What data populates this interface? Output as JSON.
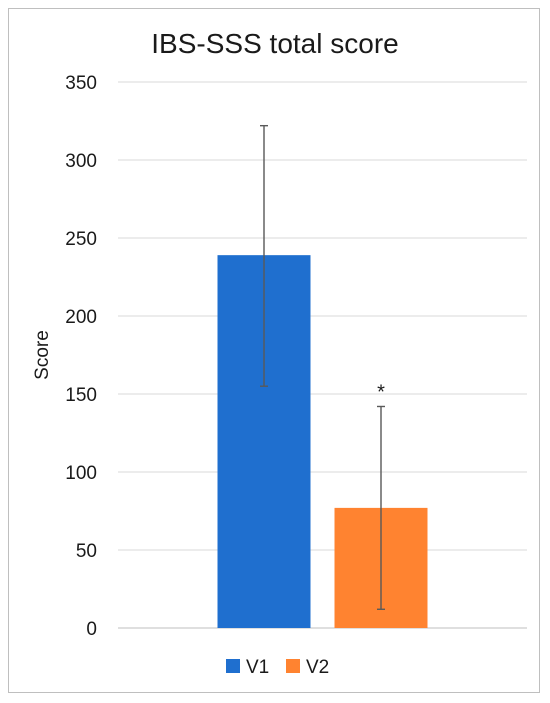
{
  "chart_data": {
    "type": "bar",
    "title": "IBS-SSS total score",
    "xlabel": "",
    "ylabel": "Score",
    "ylim": [
      0,
      350
    ],
    "yticks": [
      0,
      50,
      100,
      150,
      200,
      250,
      300,
      350
    ],
    "grid": true,
    "legend_position": "bottom",
    "categories": [
      "V1",
      "V2"
    ],
    "values": [
      239,
      77
    ],
    "error_bars": [
      [
        155,
        322
      ],
      [
        12,
        142
      ]
    ],
    "colors": [
      "#1f6fcf",
      "#ff8330"
    ],
    "error_color": "#595959",
    "annotations": [
      {
        "category": "V2",
        "text": "*"
      }
    ]
  }
}
